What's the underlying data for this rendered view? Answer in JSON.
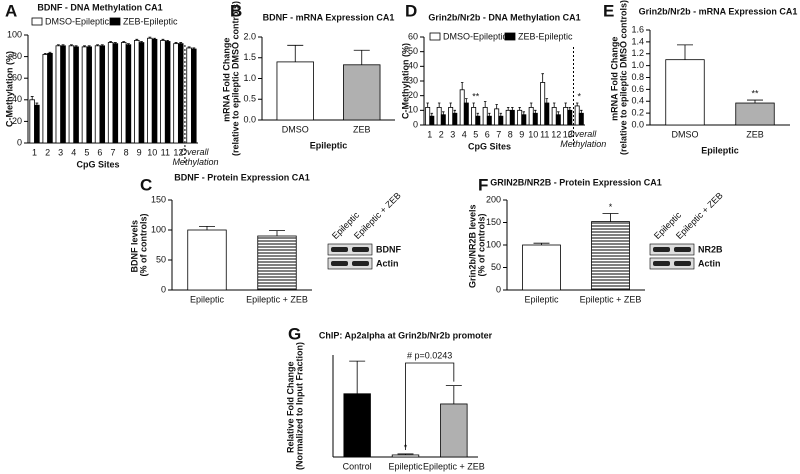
{
  "chart_data": [
    {
      "type": "bar",
      "panel": "A",
      "title": "BDNF - DNA Methylation CA1",
      "x_label": "CpG Sites",
      "y_label": "C-Methylation (%)",
      "categories": [
        "1",
        "2",
        "3",
        "4",
        "5",
        "6",
        "7",
        "8",
        "9",
        "10",
        "11",
        "12",
        "Overall Methylation"
      ],
      "series": [
        {
          "name": "DMSO-Epileptic",
          "color": "#ffffff",
          "values": [
            40,
            82,
            90,
            90,
            89,
            90,
            93,
            93,
            95,
            97,
            95,
            92,
            88
          ],
          "errors": [
            3,
            1,
            1,
            1,
            1,
            1,
            1,
            1,
            1,
            1,
            1,
            1,
            1
          ]
        },
        {
          "name": "ZEB-Epileptic",
          "color": "#000000",
          "values": [
            35,
            83,
            90,
            89,
            89,
            90,
            92,
            91,
            93,
            96,
            94,
            92,
            87
          ],
          "errors": [
            2,
            1,
            1,
            1,
            1,
            1,
            1,
            1,
            1,
            1,
            1,
            1,
            1
          ]
        }
      ],
      "ylim": [
        0,
        100
      ],
      "yticks": [
        0,
        20,
        40,
        60,
        80,
        100
      ]
    },
    {
      "type": "bar",
      "panel": "B",
      "title": "BDNF - mRNA Expression CA1",
      "x_label": "Epileptic",
      "y_label": "mRNA Fold Change (relative to epileptic DMSO controls)",
      "categories": [
        "DMSO",
        "ZEB"
      ],
      "values": [
        1.4,
        1.33
      ],
      "errors": [
        0.4,
        0.35
      ],
      "colors": [
        "#ffffff",
        "#b0b0b0"
      ],
      "hatch": [
        false,
        false
      ],
      "ylim": [
        0,
        2
      ],
      "yticks": [
        {
          "value": 0,
          "label": "0.0"
        },
        0.5,
        {
          "value": 1,
          "label": "1.0"
        },
        1.5,
        {
          "value": 2,
          "label": "2.0"
        }
      ]
    },
    {
      "type": "bar",
      "panel": "C",
      "title": "BDNF - Protein Expression CA1",
      "y_label": "BDNF levels (% of controls)",
      "categories": [
        "Epileptic",
        "Epileptic + ZEB"
      ],
      "values": [
        100,
        90
      ],
      "errors": [
        6,
        9
      ],
      "colors": [
        "#ffffff",
        "#ffffff"
      ],
      "hatch": [
        false,
        true
      ],
      "ylim": [
        0,
        150
      ],
      "yticks": [
        0,
        50,
        100,
        150
      ],
      "blot": {
        "lanes": [
          "Epileptic",
          "Epileptic + ZEB"
        ],
        "bands": [
          "BDNF",
          "Actin"
        ]
      }
    },
    {
      "type": "bar",
      "panel": "D",
      "title": "Grin2b/Nr2b - DNA Methylation CA1",
      "x_label": "CpG Sites",
      "y_label": "C-Methylation (%)",
      "categories": [
        "1",
        "2",
        "3",
        "4",
        "5",
        "6",
        "7",
        "8",
        "9",
        "10",
        "11",
        "12",
        "13",
        "Overall Methylation"
      ],
      "series": [
        {
          "name": "DMSO-Epileptic",
          "color": "#ffffff",
          "values": [
            12,
            12,
            12,
            24,
            12,
            12,
            11,
            10,
            10,
            12,
            29,
            12,
            12,
            13
          ],
          "errors": [
            3,
            3,
            3,
            5,
            3,
            4,
            3,
            2,
            2,
            3,
            6,
            3,
            3,
            2
          ]
        },
        {
          "name": "ZEB-Epileptic",
          "color": "#000000",
          "values": [
            6,
            7,
            8,
            15,
            6,
            6,
            6,
            10,
            7,
            8,
            15,
            7,
            10,
            8
          ],
          "errors": [
            2,
            2,
            2,
            3,
            2,
            2,
            2,
            2,
            2,
            2,
            3,
            2,
            2,
            2
          ]
        }
      ],
      "annotations": [
        "**",
        "*"
      ],
      "ylim": [
        0,
        60
      ],
      "yticks": [
        0,
        10,
        20,
        30,
        40,
        50,
        60
      ]
    },
    {
      "type": "bar",
      "panel": "E",
      "title": "Grin2b/Nr2b - mRNA Expression CA1",
      "x_label": "Epileptic",
      "y_label": "mRNA Fold Change (relative to epileptic DMSO controls)",
      "categories": [
        "DMSO",
        "ZEB"
      ],
      "values": [
        1.1,
        0.37
      ],
      "errors": [
        0.25,
        0.05
      ],
      "colors": [
        "#ffffff",
        "#b0b0b0"
      ],
      "hatch": [
        false,
        false
      ],
      "annotations": [
        "**"
      ],
      "ylim": [
        0,
        1.6
      ],
      "yticks": [
        {
          "value": 0,
          "label": "0.0"
        },
        0.2,
        0.4,
        0.6,
        0.8,
        {
          "value": 1,
          "label": "1.0"
        },
        1.2,
        1.4,
        1.6
      ]
    },
    {
      "type": "bar",
      "panel": "F",
      "title": "GRIN2B/NR2B - Protein Expression CA1",
      "y_label": "Grin2b/NR2B levels (% of controls)",
      "categories": [
        "Epileptic",
        "Epileptic + ZEB"
      ],
      "values": [
        100,
        152
      ],
      "errors": [
        4,
        18
      ],
      "colors": [
        "#ffffff",
        "#ffffff"
      ],
      "hatch": [
        false,
        true
      ],
      "annotations": [
        "*"
      ],
      "ylim": [
        0,
        200
      ],
      "yticks": [
        0,
        50,
        100,
        150,
        200
      ],
      "blot": {
        "lanes": [
          "Epileptic",
          "Epileptic + ZEB"
        ],
        "bands": [
          "NR2B",
          "Actin"
        ]
      }
    },
    {
      "type": "bar",
      "panel": "G",
      "title": "ChIP: Ap2alpha at Grin2b/Nr2b promoter",
      "y_label": "Relative Fold Change (Normalized to Input Fraction)",
      "categories": [
        "Control",
        "Epileptic",
        "Epileptic + ZEB"
      ],
      "values": [
        6.2,
        0.2,
        5.2
      ],
      "errors": [
        3.2,
        0.1,
        1.8
      ],
      "colors": [
        "#000000",
        "#ffffff",
        "#b0b0b0"
      ],
      "hatch": [
        false,
        false,
        false
      ],
      "annotations": [
        "*",
        "# p=0.0243"
      ],
      "ylim": [
        0,
        10
      ],
      "yticks": []
    }
  ]
}
